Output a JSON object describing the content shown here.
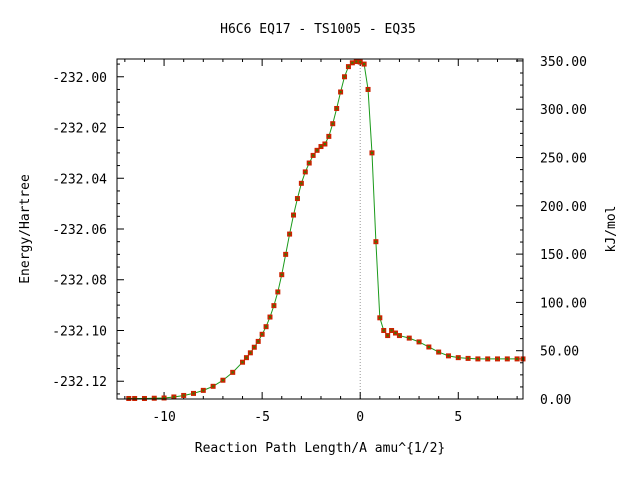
{
  "chart_data": {
    "type": "line",
    "title": "H6C6   EQ17 - TS1005 - EQ35",
    "xlabel": "Reaction Path Length/A amu^{1/2}",
    "ylabel_left": "Energy/Hartree",
    "ylabel_right": "kJ/mol",
    "xlim": [
      -12.4,
      8.3
    ],
    "ylim_left": [
      -232.127,
      -231.993
    ],
    "ylim_right": [
      0,
      352
    ],
    "x_ticks": [
      -10,
      -5,
      0,
      5
    ],
    "x_tick_labels": [
      "-10",
      "-5",
      "0",
      "5"
    ],
    "y_left_ticks": [
      -232.12,
      -232.1,
      -232.08,
      -232.06,
      -232.04,
      -232.02,
      -232.0
    ],
    "y_left_tick_labels": [
      "-232.12",
      "-232.10",
      "-232.08",
      "-232.06",
      "-232.04",
      "-232.02",
      "-232.00"
    ],
    "y_right_ticks": [
      0,
      50,
      100,
      150,
      200,
      250,
      300,
      350
    ],
    "y_right_tick_labels": [
      "0.00",
      "50.00",
      "100.00",
      "150.00",
      "200.00",
      "250.00",
      "300.00",
      "350.00"
    ],
    "grid": false,
    "legend": "none",
    "vertical_marker_x": 0,
    "colors": {
      "line": "#1a9a1a",
      "marker": "#cc2200",
      "marker_center": "#3a7a00",
      "marker_line": "#999999"
    },
    "series": [
      {
        "x": [
          -11.8,
          -11.5,
          -11.0,
          -10.5,
          -10.0,
          -9.5,
          -9.0,
          -8.5,
          -8.0,
          -7.5,
          -7.0,
          -6.5,
          -6.0,
          -5.8,
          -5.6,
          -5.4,
          -5.2,
          -5.0,
          -4.8,
          -4.6,
          -4.4,
          -4.2,
          -4.0,
          -3.8,
          -3.6,
          -3.4,
          -3.2,
          -3.0,
          -2.8,
          -2.6,
          -2.4,
          -2.2,
          -2.0,
          -1.8,
          -1.6,
          -1.4,
          -1.2,
          -1.0,
          -0.8,
          -0.6,
          -0.4,
          -0.2,
          0.0,
          0.2,
          0.4,
          0.6,
          0.8,
          1.0,
          1.2,
          1.4,
          1.6,
          1.8,
          2.0,
          2.5,
          3.0,
          3.5,
          4.0,
          4.5,
          5.0,
          5.5,
          6.0,
          6.5,
          7.0,
          7.5,
          8.0,
          8.3
        ],
        "y": [
          -232.1268,
          -232.1268,
          -232.1268,
          -232.1267,
          -232.1266,
          -232.1262,
          -232.1256,
          -232.1248,
          -232.1236,
          -232.122,
          -232.1196,
          -232.1165,
          -232.1125,
          -232.1107,
          -232.1088,
          -232.1066,
          -232.1043,
          -232.1015,
          -232.0985,
          -232.0947,
          -232.0902,
          -232.0848,
          -232.078,
          -232.07,
          -232.062,
          -232.0545,
          -232.048,
          -232.042,
          -232.0375,
          -232.034,
          -232.031,
          -232.029,
          -232.0275,
          -232.0265,
          -232.0235,
          -232.0185,
          -232.0125,
          -232.006,
          -232.0,
          -231.996,
          -231.9945,
          -231.994,
          -231.9942,
          -231.995,
          -232.005,
          -232.03,
          -232.065,
          -232.095,
          -232.1,
          -232.102,
          -232.1,
          -232.101,
          -232.102,
          -232.103,
          -232.1045,
          -232.1065,
          -232.1085,
          -232.11,
          -232.1107,
          -232.111,
          -232.1112,
          -232.1112,
          -232.1112,
          -232.1112,
          -232.1112,
          -232.1112
        ]
      }
    ]
  }
}
